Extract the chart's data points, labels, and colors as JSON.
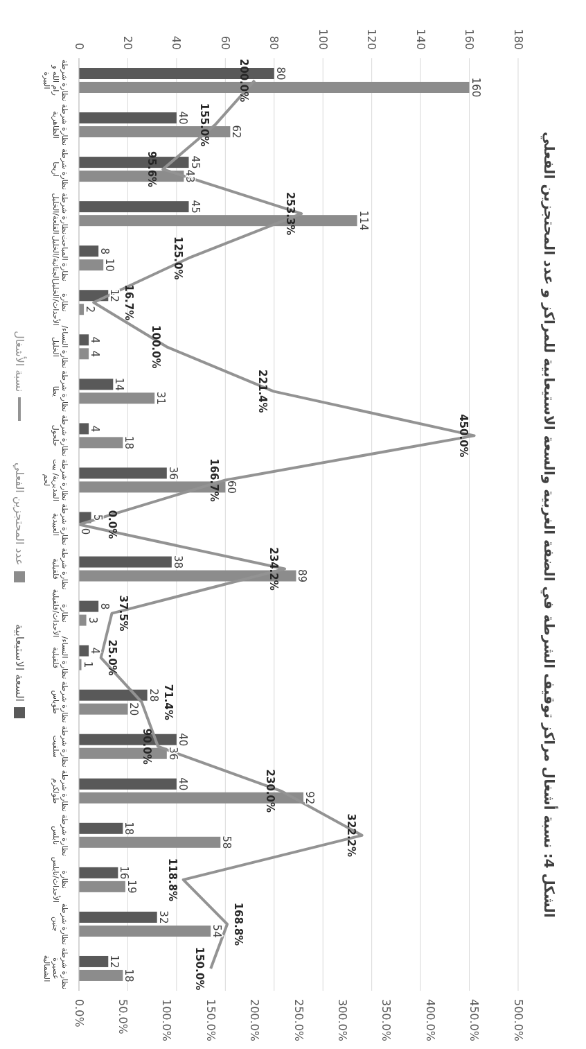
{
  "chart_data": {
    "type": "bar",
    "orientation": "horizontal",
    "title": "الشكل 4: نسبة أشغال مراكز توقيف الشرطة في الضفة الغربية والسعة الاستيعابية للمراكز و عدد المحتجزين الفعلي",
    "categories": [
      "نظارة شرطة رام الله و البيرة",
      "نظارة شرطة الظاهرية",
      "نظارة شرطة اريحا",
      "نظارة شرطة القلعة/الخليل",
      "نظارة المباحث الجنائية/الخليل",
      "نظارة الأحداث/الخليل",
      "نظارة النساء/ الخليل",
      "نظارة شرطة يطا",
      "نظارة شرطة حلحول",
      "نظارة شرطة المديرية/ بيت لحم",
      "نظارة شرطة العبيدية",
      "نظارة شرطة قلقيلية",
      "نظارة الأحداث/قلقيلية",
      "نظارة النساء/ قلقيلية",
      "نظارة شرطة طوباس",
      "نظارة شرطة سلفيت",
      "نظارة شرطة طولكرم",
      "نظارة شرطة نابلس",
      "نظارة الأحداث/نابلس",
      "نظارة شرطة جنين",
      "نظارة شرطة عصيرة الشمالية"
    ],
    "series": [
      {
        "name": "السعة الاستيعابية",
        "color": "#595959",
        "values": [
          80,
          40,
          45,
          45,
          8,
          12,
          4,
          14,
          4,
          36,
          5,
          38,
          8,
          4,
          28,
          40,
          40,
          18,
          16,
          32,
          12
        ],
        "value_labels": [
          "80",
          "40",
          "45",
          "45",
          "8",
          "12",
          "4",
          "14",
          "4",
          "36",
          "5",
          "38",
          "8",
          "4",
          "28",
          "40",
          "40",
          "18",
          "16",
          "32",
          "12"
        ]
      },
      {
        "name": "عدد المحتجزين الفعلي",
        "color": "#8c8c8c",
        "values": [
          160,
          62,
          43,
          114,
          10,
          2,
          4,
          31,
          18,
          60,
          0,
          89,
          3,
          1,
          20,
          36,
          92,
          58,
          19,
          54,
          18
        ],
        "value_labels": [
          "160",
          "62",
          "43",
          "114",
          "10",
          "2",
          "4",
          "31",
          "18",
          "60",
          "0",
          "89",
          "3",
          "1",
          "20",
          "36",
          "92",
          "58",
          "19",
          "54",
          "18"
        ]
      },
      {
        "name": "نسبة الأشغال",
        "type": "line",
        "axis": "x2",
        "color": "#939393",
        "values": [
          200,
          155,
          95.6,
          253.3,
          125,
          16.7,
          100,
          221.4,
          450,
          166.7,
          0,
          234.2,
          37.5,
          25,
          71.4,
          90,
          230,
          322.2,
          118.8,
          168.8,
          150
        ],
        "value_labels": [
          "200.0%",
          "155.0%",
          "95.6%",
          "253.3%",
          "125.0%",
          "16.7%",
          "100.0%",
          "221.4%",
          "450.0%",
          "166.7%",
          "0.0%",
          "234.2%",
          "37.5%",
          "25.0%",
          "71.4%",
          "90.0%",
          "230.0%",
          "322.2%",
          "118.8%",
          "168.8%",
          "150.0%"
        ]
      }
    ],
    "xlim": [
      0,
      180
    ],
    "xticks": [
      0,
      20,
      40,
      60,
      80,
      100,
      120,
      140,
      160,
      180
    ],
    "x2lim": [
      0,
      500
    ],
    "x2ticks": [
      {
        "value": 0,
        "label": "0.0%"
      },
      {
        "value": 50,
        "label": "50.0%"
      },
      {
        "value": 100,
        "label": "100.0%"
      },
      {
        "value": 150,
        "label": "150.0%"
      },
      {
        "value": 200,
        "label": "200.0%"
      },
      {
        "value": 250,
        "label": "250.0%"
      },
      {
        "value": 300,
        "label": "300.0%"
      },
      {
        "value": 350,
        "label": "350.0%"
      },
      {
        "value": 400,
        "label": "400.0%"
      },
      {
        "value": 450,
        "label": "450.0%"
      },
      {
        "value": 500,
        "label": "500.0%"
      }
    ],
    "grid": "x",
    "legend": "left",
    "marker": "none",
    "line_style": "solid"
  }
}
